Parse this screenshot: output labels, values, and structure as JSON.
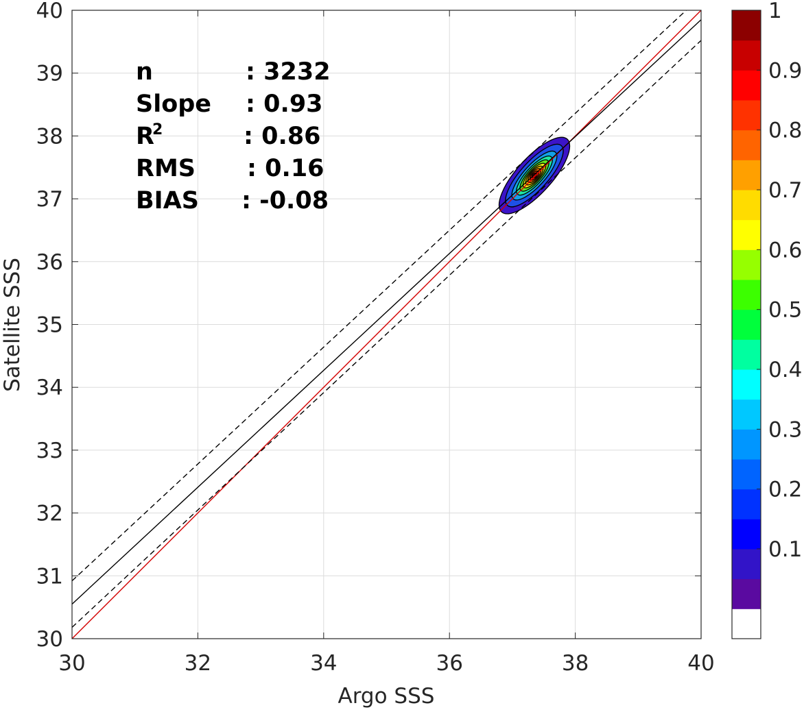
{
  "chart_data": {
    "type": "scatter",
    "subtype": "density-contour",
    "xlabel": "Argo SSS",
    "ylabel": "Satellite SSS",
    "xlim": [
      30,
      40
    ],
    "ylim": [
      30,
      40
    ],
    "x_ticks": [
      30,
      32,
      34,
      36,
      38,
      40
    ],
    "y_ticks": [
      30,
      31,
      32,
      33,
      34,
      35,
      36,
      37,
      38,
      39,
      40
    ],
    "grid": true,
    "stats": [
      {
        "label": "n",
        "value": ": 3232"
      },
      {
        "label": "Slope",
        "value": ": 0.93"
      },
      {
        "label": "R",
        "sup": "2",
        "value": ": 0.86"
      },
      {
        "label": "RMS",
        "value": ": 0.16"
      },
      {
        "label": "BIAS",
        "value": ": -0.08"
      }
    ],
    "lines": [
      {
        "name": "one-to-one",
        "color": "#d40000",
        "style": "solid",
        "points": [
          [
            30,
            30
          ],
          [
            40,
            40
          ]
        ]
      },
      {
        "name": "regression-fit",
        "color": "#000000",
        "style": "solid",
        "points": [
          [
            30,
            30.55
          ],
          [
            40,
            39.85
          ]
        ]
      },
      {
        "name": "fit-upper-bound",
        "color": "#000000",
        "style": "dashed",
        "points": [
          [
            30,
            30.92
          ],
          [
            40,
            40.22
          ]
        ]
      },
      {
        "name": "fit-lower-bound",
        "color": "#000000",
        "style": "dashed",
        "points": [
          [
            30,
            30.18
          ],
          [
            40,
            39.52
          ]
        ]
      }
    ],
    "density": {
      "center": [
        37.35,
        37.37
      ],
      "levels": [
        {
          "value": 0.05,
          "color": "#3c14c8",
          "rx": 0.78,
          "ry": 0.28
        },
        {
          "value": 0.15,
          "color": "#1e50e6",
          "rx": 0.64,
          "ry": 0.22
        },
        {
          "value": 0.25,
          "color": "#14a0e6",
          "rx": 0.5,
          "ry": 0.17
        },
        {
          "value": 0.35,
          "color": "#1ee6a0",
          "rx": 0.4,
          "ry": 0.135
        },
        {
          "value": 0.45,
          "color": "#64e61e",
          "rx": 0.32,
          "ry": 0.11
        },
        {
          "value": 0.55,
          "color": "#f0f014",
          "rx": 0.25,
          "ry": 0.09
        },
        {
          "value": 0.65,
          "color": "#ffc800",
          "rx": 0.19,
          "ry": 0.075
        },
        {
          "value": 0.75,
          "color": "#ff7800",
          "rx": 0.14,
          "ry": 0.06
        },
        {
          "value": 0.85,
          "color": "#ff2800",
          "rx": 0.09,
          "ry": 0.045
        },
        {
          "value": 0.95,
          "color": "#b40000",
          "rx": 0.045,
          "ry": 0.03
        }
      ]
    },
    "colorbar": {
      "tick_labels": [
        "1",
        "0.9",
        "0.8",
        "0.7",
        "0.6",
        "0.5",
        "0.4",
        "0.3",
        "0.2",
        "0.1"
      ],
      "tick_values": [
        1,
        0.9,
        0.8,
        0.7,
        0.6,
        0.5,
        0.4,
        0.3,
        0.2,
        0.1
      ],
      "colors": [
        "#ffffff",
        "#5a0aa0",
        "#3214c8",
        "#0000ff",
        "#0032ff",
        "#0064ff",
        "#0096ff",
        "#00c8ff",
        "#00ffff",
        "#00ffa0",
        "#00ff3c",
        "#3cff00",
        "#96ff00",
        "#ffff00",
        "#ffdc00",
        "#ffa000",
        "#ff6400",
        "#ff3200",
        "#ff0000",
        "#c80000",
        "#8c0000"
      ]
    }
  }
}
